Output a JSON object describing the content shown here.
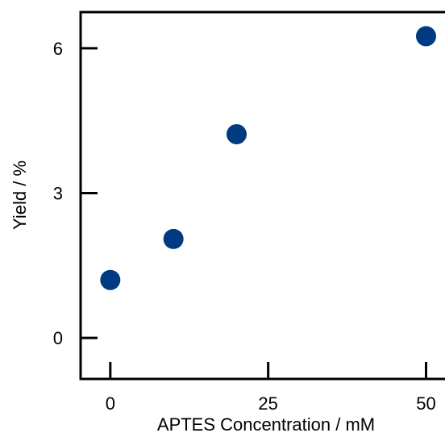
{
  "chart_data": {
    "type": "scatter",
    "title": "",
    "xlabel": "APTES Concentration / mM",
    "ylabel": "Yield / %",
    "xlim": [
      -4.7,
      53
    ],
    "ylim": [
      -0.85,
      6.75
    ],
    "x_ticks": [
      {
        "value": 0,
        "label": "0"
      },
      {
        "value": 25,
        "label": "25"
      },
      {
        "value": 50,
        "label": "50"
      }
    ],
    "y_ticks": [
      {
        "value": 0,
        "label": "0"
      },
      {
        "value": 3,
        "label": "3"
      },
      {
        "value": 6,
        "label": "6"
      }
    ],
    "grid": false,
    "legend": "none",
    "marker_color": "#003A80",
    "series": [
      {
        "points": [
          {
            "x": 0,
            "y": 1.2
          },
          {
            "x": 10,
            "y": 2.05
          },
          {
            "x": 20,
            "y": 4.22
          },
          {
            "x": 50,
            "y": 6.25
          }
        ]
      }
    ]
  }
}
